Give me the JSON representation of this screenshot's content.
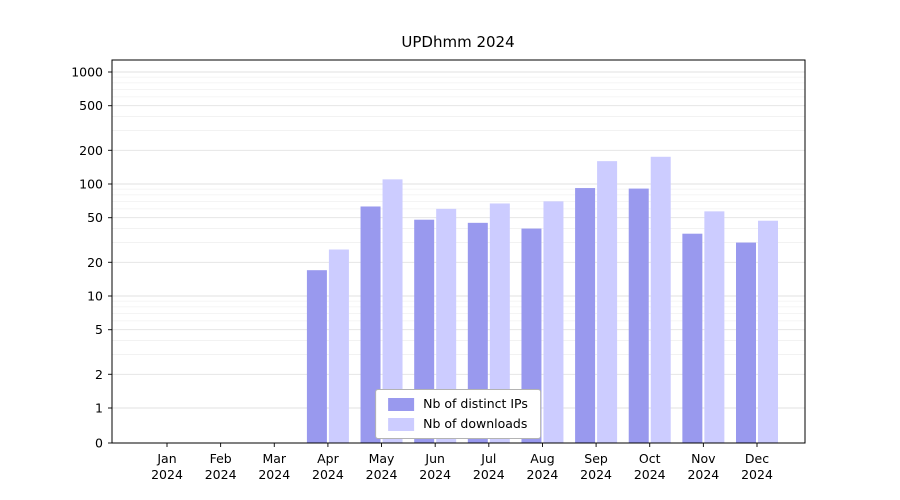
{
  "chart_data": {
    "type": "bar",
    "title": "UPDhmm 2024",
    "xlabel": "",
    "ylabel": "",
    "categories": [
      "Jan",
      "Feb",
      "Mar",
      "Apr",
      "May",
      "Jun",
      "Jul",
      "Aug",
      "Sep",
      "Oct",
      "Nov",
      "Dec"
    ],
    "year": "2024",
    "series": [
      {
        "name": "Nb of distinct IPs",
        "color": "#9999ee",
        "values": [
          0,
          0,
          0,
          17,
          63,
          48,
          45,
          40,
          92,
          91,
          36,
          30
        ]
      },
      {
        "name": "Nb of downloads",
        "color": "#ccccff",
        "values": [
          0,
          0,
          0,
          26,
          110,
          60,
          67,
          70,
          160,
          175,
          57,
          47
        ]
      }
    ],
    "yticks": [
      0,
      1,
      2,
      5,
      10,
      20,
      50,
      100,
      200,
      500,
      1000
    ],
    "ylim": [
      0,
      1000
    ],
    "yscale": "log-with-zero",
    "grid": true,
    "legend_position": "lower center"
  }
}
